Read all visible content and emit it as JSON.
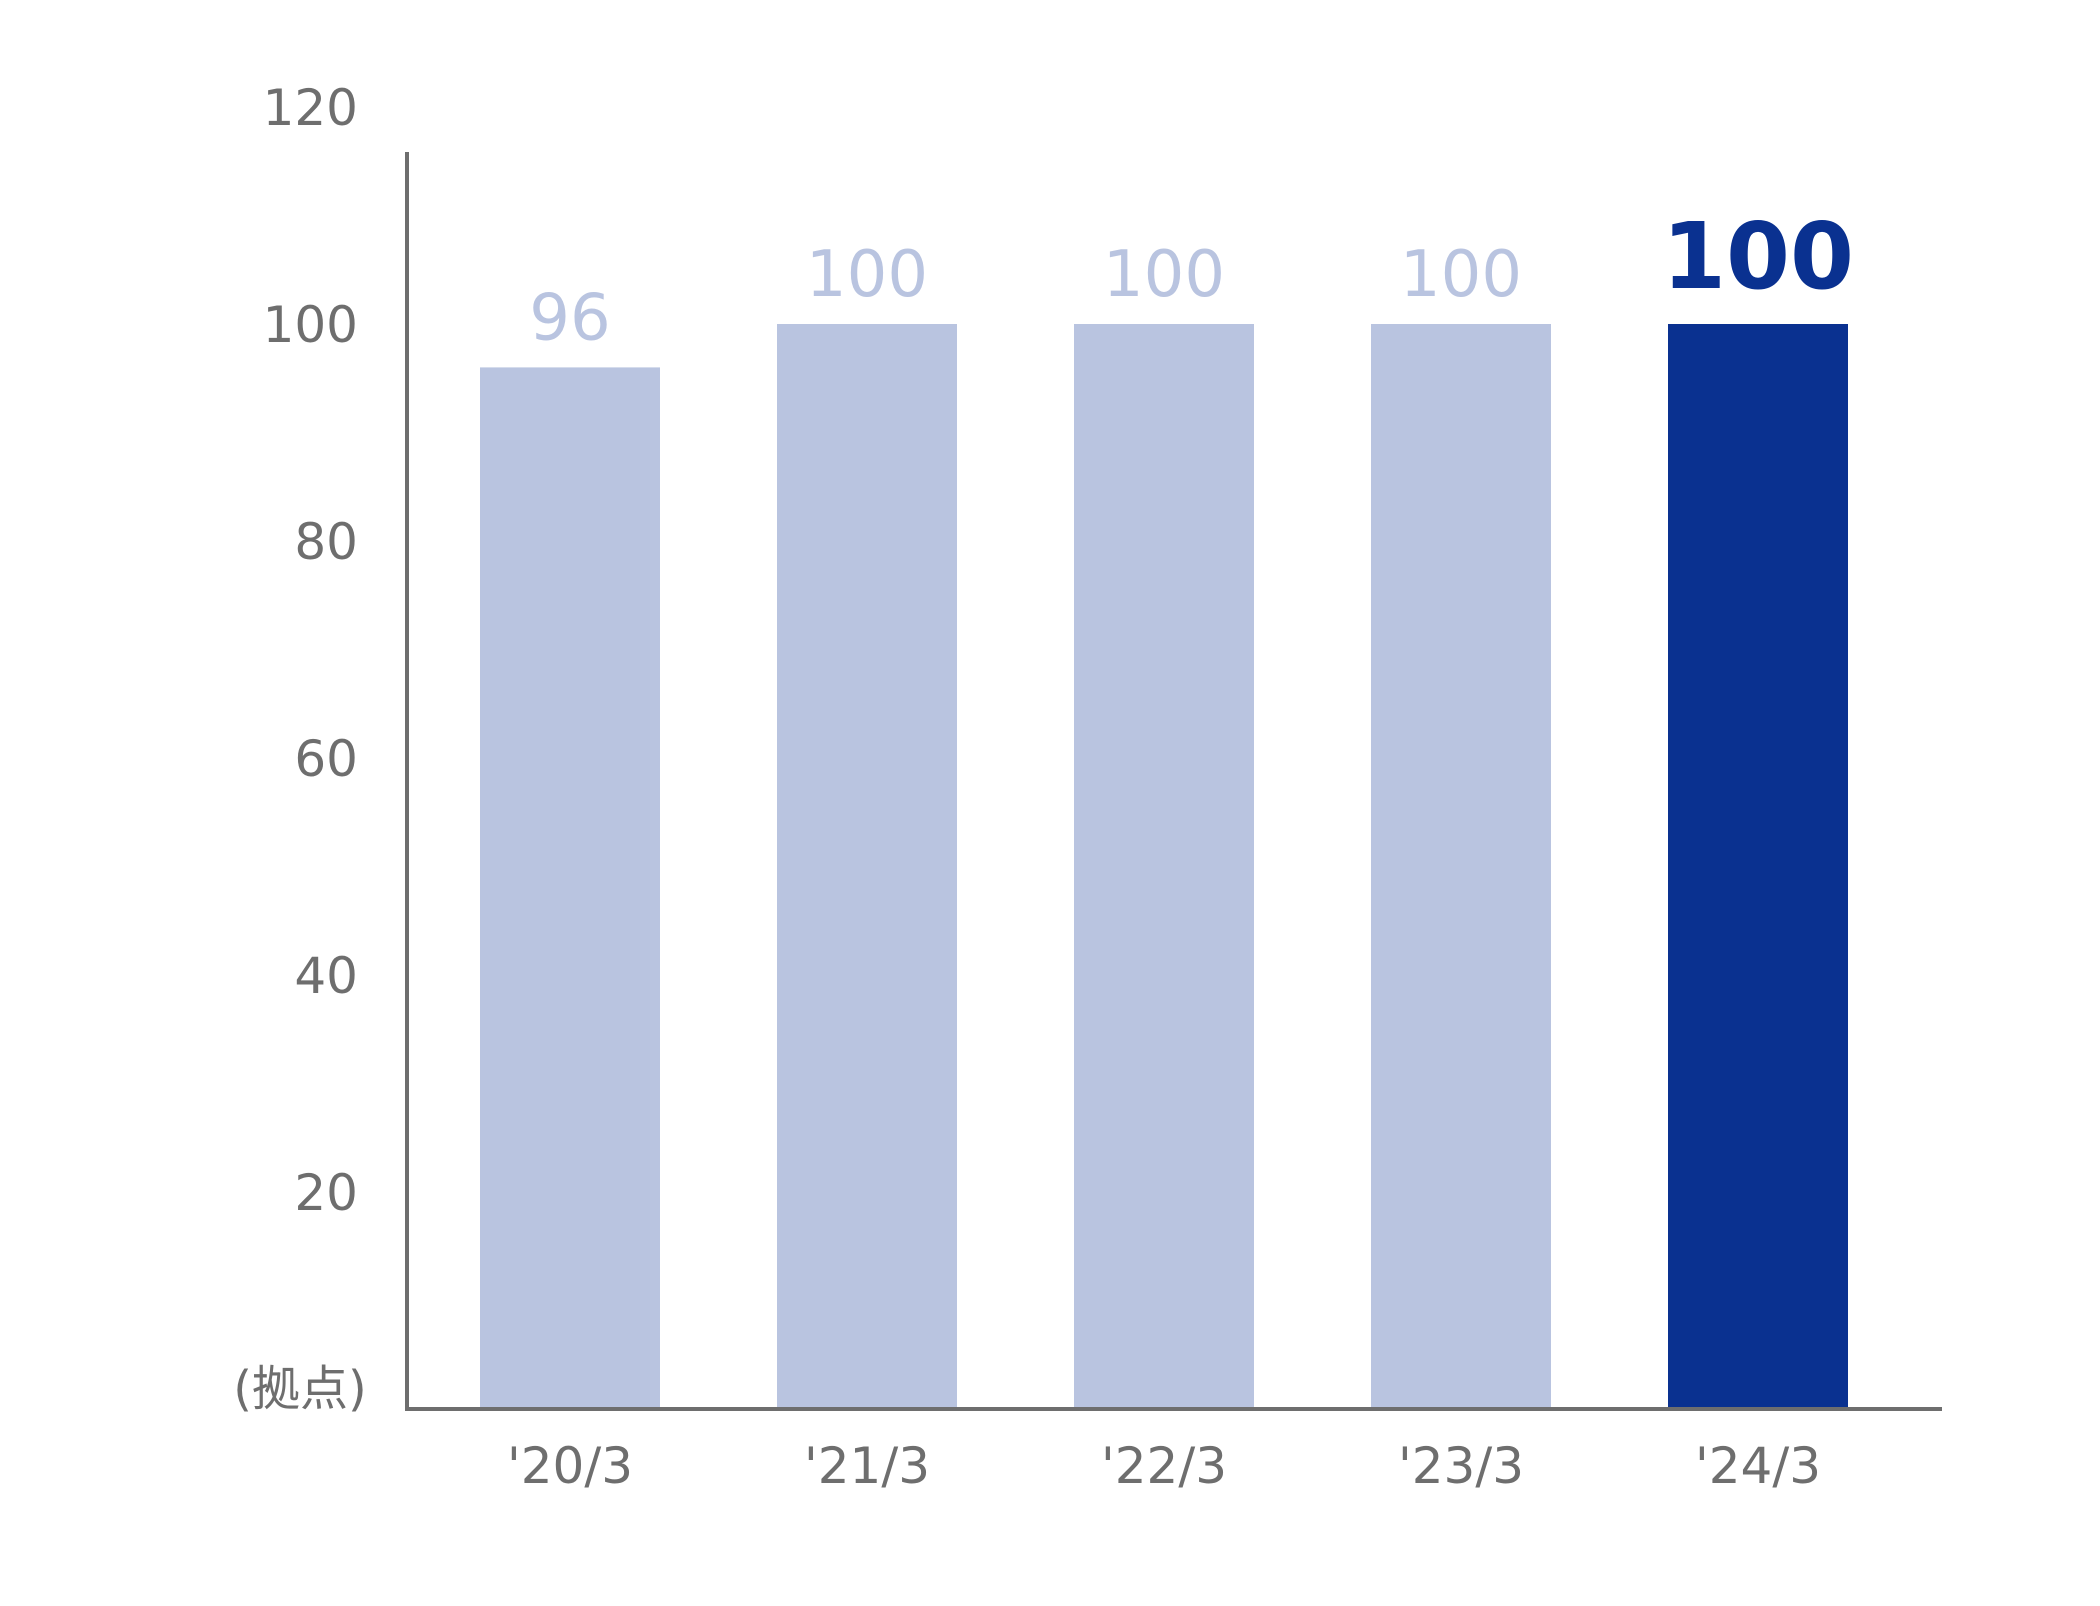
{
  "chart_data": {
    "type": "bar",
    "categories": [
      "'20/3",
      "'21/3",
      "'22/3",
      "'23/3",
      "'24/3"
    ],
    "values": [
      96,
      100,
      100,
      100,
      100
    ],
    "data_labels": [
      "96",
      "100",
      "100",
      "100",
      "100"
    ],
    "ylabel": "(拠点)",
    "ylim": [
      0,
      120
    ],
    "yticks": [
      20,
      40,
      60,
      80,
      100,
      120
    ],
    "grid": false,
    "legend": "none",
    "highlight_index": 4
  },
  "colors": {
    "bar": "#b9c4e0",
    "bar_highlight": "#0a3190",
    "label": "#b9c4e0",
    "label_highlight": "#0a3190",
    "axis": "#6e6e6e",
    "text": "#6e6e6e"
  }
}
